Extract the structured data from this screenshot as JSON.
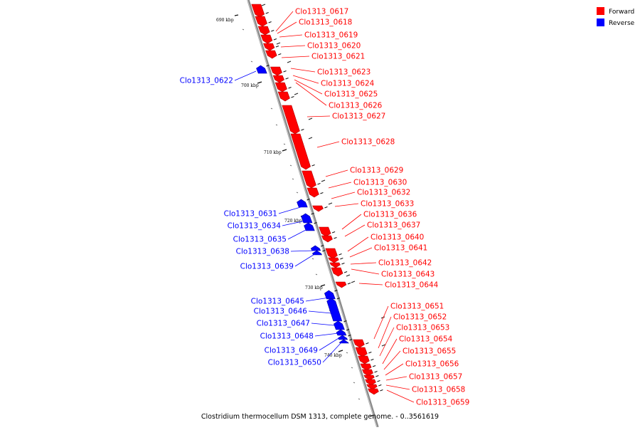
{
  "legend": {
    "forward_label": "Forward",
    "forward_color": "#ff0000",
    "reverse_label": "Reverse",
    "reverse_color": "#0000ff"
  },
  "caption": "Clostridium thermocellum DSM 1313, complete genome. - 0..3561619",
  "scale_marks": [
    {
      "label": "690 kbp",
      "pos_kbp": 690
    },
    {
      "label": "700 kbp",
      "pos_kbp": 700
    },
    {
      "label": "710 kbp",
      "pos_kbp": 710
    },
    {
      "label": "720 kbp",
      "pos_kbp": 720
    },
    {
      "label": "730 kbp",
      "pos_kbp": 730
    },
    {
      "label": "740 kbp",
      "pos_kbp": 740
    }
  ],
  "forward_genes": [
    "Clo1313_0617",
    "Clo1313_0618",
    "Clo1313_0619",
    "Clo1313_0620",
    "Clo1313_0621",
    "Clo1313_0623",
    "Clo1313_0624",
    "Clo1313_0625",
    "Clo1313_0626",
    "Clo1313_0627",
    "Clo1313_0628",
    "Clo1313_0629",
    "Clo1313_0630",
    "Clo1313_0632",
    "Clo1313_0633",
    "Clo1313_0636",
    "Clo1313_0637",
    "Clo1313_0640",
    "Clo1313_0641",
    "Clo1313_0642",
    "Clo1313_0643",
    "Clo1313_0644",
    "Clo1313_0651",
    "Clo1313_0652",
    "Clo1313_0653",
    "Clo1313_0654",
    "Clo1313_0655",
    "Clo1313_0656",
    "Clo1313_0657",
    "Clo1313_0658",
    "Clo1313_0659"
  ],
  "reverse_genes": [
    "Clo1313_0622",
    "Clo1313_0631",
    "Clo1313_0634",
    "Clo1313_0635",
    "Clo1313_0638",
    "Clo1313_0639",
    "Clo1313_0645",
    "Clo1313_0646",
    "Clo1313_0647",
    "Clo1313_0648",
    "Clo1313_0649",
    "Clo1313_0650"
  ]
}
